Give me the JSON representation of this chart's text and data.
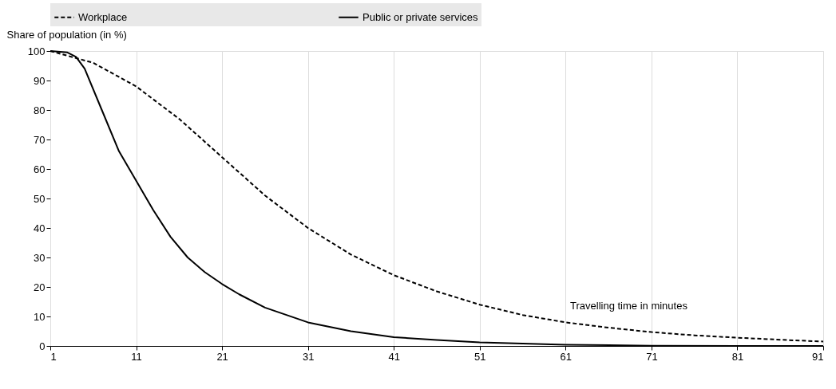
{
  "chart_data": {
    "type": "line",
    "xlabel": "Travelling time in minutes",
    "ylabel": "Share of population (in %)",
    "xlim": [
      1,
      91
    ],
    "xticks": [
      1,
      11,
      21,
      31,
      41,
      51,
      61,
      71,
      81,
      91
    ],
    "ylim": [
      0,
      100
    ],
    "yticks": [
      0,
      10,
      20,
      30,
      40,
      50,
      60,
      70,
      80,
      90,
      100
    ],
    "grid": "x",
    "legend": "top",
    "marker": "none",
    "series": [
      {
        "name": "Workplace",
        "color": "#000000",
        "line_style": "dashed",
        "x": [
          1,
          6,
          11,
          16,
          21,
          26,
          31,
          36,
          41,
          46,
          51,
          56,
          61,
          66,
          71,
          76,
          81,
          86,
          91
        ],
        "values": [
          100,
          96,
          88,
          77,
          64,
          51,
          40,
          31,
          24,
          18.5,
          14,
          10.5,
          8,
          6.2,
          4.7,
          3.6,
          2.8,
          2.1,
          1.5
        ]
      },
      {
        "name": "Public or private services",
        "color": "#000000",
        "line_style": "solid",
        "x": [
          1,
          3,
          4,
          5,
          7,
          9,
          11,
          13,
          15,
          17,
          19,
          21,
          23,
          26,
          31,
          36,
          41,
          46,
          51,
          61,
          71,
          81,
          91
        ],
        "values": [
          100,
          99.5,
          98,
          94,
          80,
          66,
          56,
          46,
          37,
          30,
          25,
          21,
          17.5,
          13,
          8,
          5,
          3,
          2,
          1.2,
          0.4,
          0.1,
          0,
          0
        ]
      }
    ]
  }
}
